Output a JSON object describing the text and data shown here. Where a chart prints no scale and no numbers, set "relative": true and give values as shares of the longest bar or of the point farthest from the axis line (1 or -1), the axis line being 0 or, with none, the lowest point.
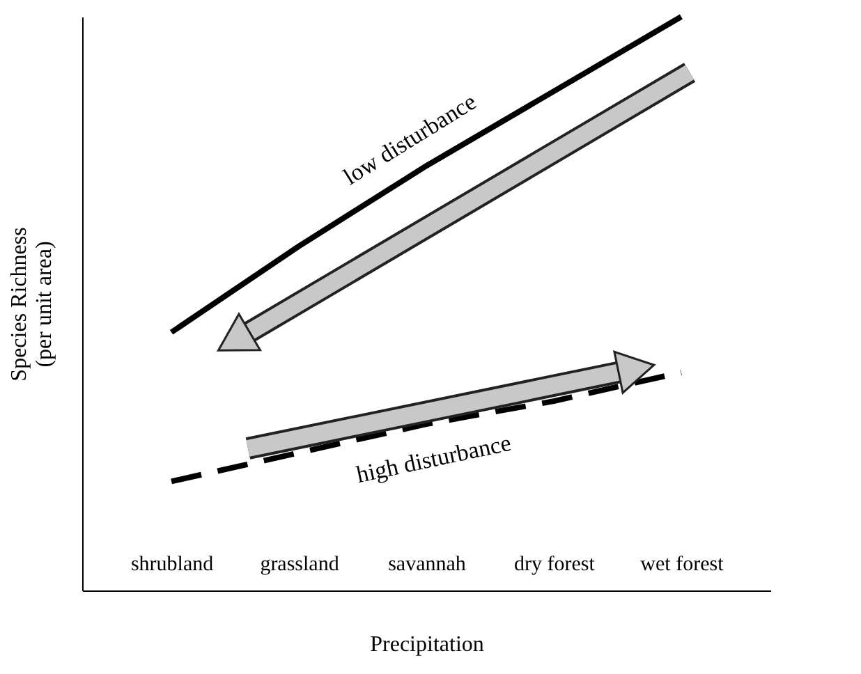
{
  "chart_data": {
    "type": "line",
    "relative": true,
    "xlabel": "Precipitation",
    "ylabel": "Species Richness\n(per unit area)",
    "categories": [
      "shrubland",
      "grassland",
      "savannah",
      "dry forest",
      "wet forest"
    ],
    "series": [
      {
        "name": "low disturbance",
        "color": "#000000",
        "line_style": "solid",
        "values": [
          0.45,
          0.6,
          0.74,
          0.87,
          1.0
        ]
      },
      {
        "name": "high disturbance",
        "color": "#000000",
        "line_style": "dashed",
        "values": [
          0.19,
          0.24,
          0.29,
          0.33,
          0.38
        ]
      }
    ],
    "legend": false,
    "grid": false,
    "marker": "none"
  }
}
